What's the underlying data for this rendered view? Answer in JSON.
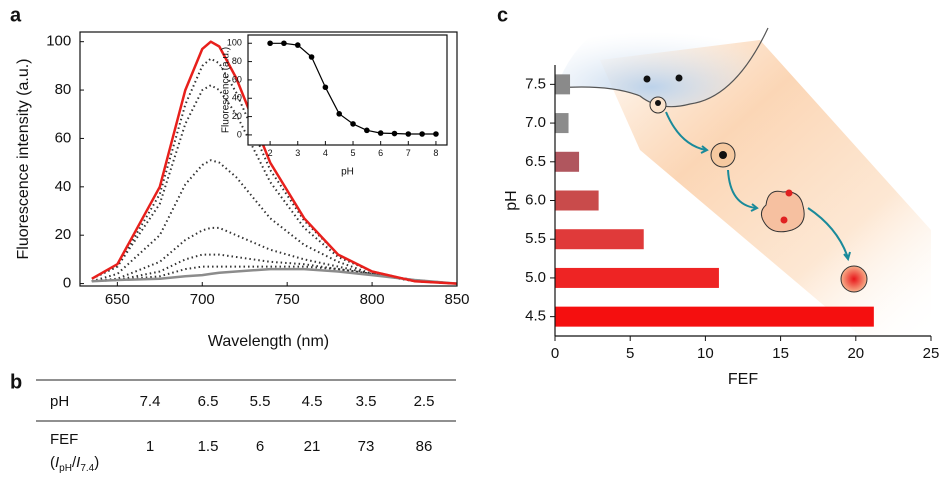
{
  "panel_labels": [
    "a",
    "b",
    "c"
  ],
  "chart_data": [
    {
      "type": "line",
      "xlabel": "Wavelength (nm)",
      "ylabel": "Fluorescence intensity (a.u.)",
      "x": [
        635,
        650,
        675,
        690,
        700,
        705,
        710,
        720,
        740,
        760,
        780,
        800,
        825,
        850
      ],
      "series": [
        {
          "color": "#333333",
          "style": "dotted",
          "values": [
            2,
            7,
            37,
            74,
            90,
            93,
            91,
            79,
            47,
            26,
            12,
            5,
            1,
            0
          ]
        },
        {
          "color": "#333333",
          "style": "dotted",
          "values": [
            2,
            7,
            33,
            66,
            80,
            82,
            80,
            70,
            42,
            23,
            11,
            5,
            1,
            0
          ]
        },
        {
          "color": "#333333",
          "style": "dotted",
          "values": [
            1,
            4,
            20,
            41,
            49,
            51,
            50,
            44,
            27,
            16,
            9,
            4,
            1,
            0
          ]
        },
        {
          "color": "#333333",
          "style": "dotted",
          "values": [
            1,
            2,
            9,
            18,
            22,
            23,
            23,
            20,
            14,
            10,
            7,
            4,
            1,
            0
          ]
        },
        {
          "color": "#333333",
          "style": "dotted",
          "values": [
            1,
            1.5,
            5,
            10,
            12,
            12,
            12,
            11,
            9,
            8,
            6,
            4,
            1.5,
            0
          ]
        },
        {
          "color": "#333333",
          "style": "dotted",
          "values": [
            1,
            1.5,
            3,
            6,
            7,
            7,
            7,
            7,
            7,
            7,
            6,
            4,
            1.5,
            0
          ]
        },
        {
          "color": "#8c8c8c",
          "style": "solid",
          "values": [
            1,
            1.5,
            2,
            3,
            3.5,
            4,
            4.5,
            5,
            6,
            6,
            5,
            3.5,
            1.5,
            0
          ]
        },
        {
          "color": "#e8201c",
          "style": "solid",
          "values": [
            2,
            8,
            40,
            80,
            97,
            100,
            98,
            85,
            50,
            27,
            12,
            5,
            1,
            0
          ]
        }
      ],
      "xlim": [
        628,
        850
      ],
      "xticks": [
        650,
        700,
        750,
        800,
        850
      ],
      "ylim": [
        -1,
        104
      ],
      "yticks": [
        0,
        20,
        40,
        60,
        80,
        100
      ]
    },
    {
      "type": "line",
      "markers": true,
      "xlabel": "pH",
      "ylabel": "Fluorescence (a.u.)",
      "x": [
        2,
        2.5,
        3,
        3.5,
        4,
        4.5,
        5,
        5.5,
        6,
        6.5,
        7,
        7.5,
        8
      ],
      "series": [
        {
          "color": "#000000",
          "style": "solid",
          "values": [
            100,
            100,
            98,
            85,
            52,
            23,
            12,
            5,
            2,
            1.5,
            1,
            1,
            1
          ]
        }
      ],
      "xlim": [
        1.2,
        8.4
      ],
      "xticks": [
        2,
        3,
        4,
        5,
        6,
        7,
        8
      ],
      "ylim": [
        -11,
        109
      ],
      "yticks": [
        0,
        20,
        40,
        60,
        80,
        100
      ]
    },
    {
      "type": "bar",
      "orientation": "horizontal",
      "xlabel": "FEF",
      "ylabel": "pH",
      "categories": [
        "7.5",
        "7.0",
        "6.5",
        "6.0",
        "5.5",
        "5.0",
        "4.5"
      ],
      "values": [
        1,
        0.9,
        1.6,
        2.9,
        5.9,
        10.9,
        21.2
      ],
      "colors": [
        "#8a8a8a",
        "#8c8c8c",
        "#b0565e",
        "#c94b4b",
        "#e03a3a",
        "#ee2424",
        "#f50f0f"
      ],
      "xlim": [
        0,
        25
      ],
      "xticks": [
        0,
        5,
        10,
        15,
        20,
        25
      ]
    }
  ],
  "table": {
    "header": [
      "pH",
      "7.4",
      "6.5",
      "5.5",
      "4.5",
      "3.5",
      "2.5"
    ],
    "row_label": "FEF",
    "row_label_parts": [
      "(",
      "I",
      "pH",
      "/",
      "I",
      "7.4",
      ")"
    ],
    "row": [
      "1",
      "1.5",
      "6",
      "21",
      "73",
      "86"
    ]
  }
}
